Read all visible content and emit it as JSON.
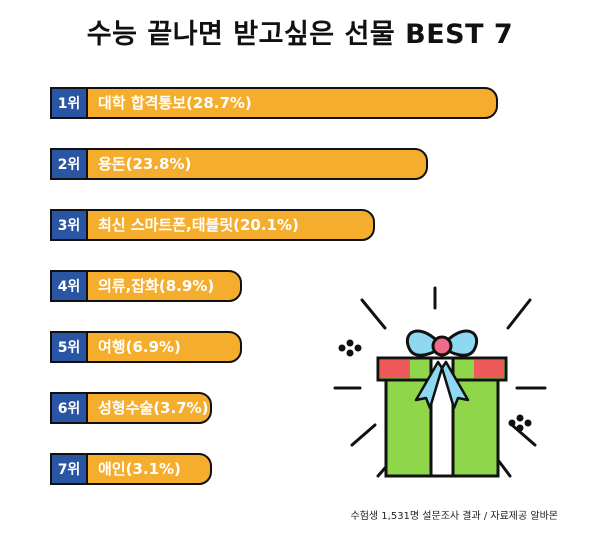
{
  "title": "수능 끝나면 받고싶은 선물 BEST 7",
  "source_note": "수험생 1,531명 설문조사 결과 / 자료제공 알바몬",
  "chart_data": {
    "type": "bar",
    "orientation": "horizontal",
    "title": "수능 끝나면 받고싶은 선물 BEST 7",
    "categories": [
      "대학 합격통보",
      "용돈",
      "최신 스마트폰,태블릿",
      "의류,잡화",
      "여행",
      "성형수술",
      "애인"
    ],
    "ranks": [
      "1위",
      "2위",
      "3위",
      "4위",
      "5위",
      "6위",
      "7위"
    ],
    "labels": [
      "대학 합격통보(28.7%)",
      "용돈(23.8%)",
      "최신 스마트폰,태블릿(20.1%)",
      "의류,잡화(8.9%)",
      "여행(6.9%)",
      "성형수술(3.7%)",
      "애인(3.1%)"
    ],
    "values": [
      28.7,
      23.8,
      20.1,
      8.9,
      6.9,
      3.7,
      3.1
    ],
    "unit": "%",
    "colors": {
      "bar": "#f5ad2e",
      "rank_box": "#2a55a3",
      "outline": "#111111"
    }
  },
  "illustration": {
    "icon": "gift-box-icon",
    "colors": {
      "box": "#8fd64a",
      "ribbon": "#ee5a5a",
      "bow": "#8ed8f0",
      "bow_knot": "#f06b8a"
    }
  }
}
